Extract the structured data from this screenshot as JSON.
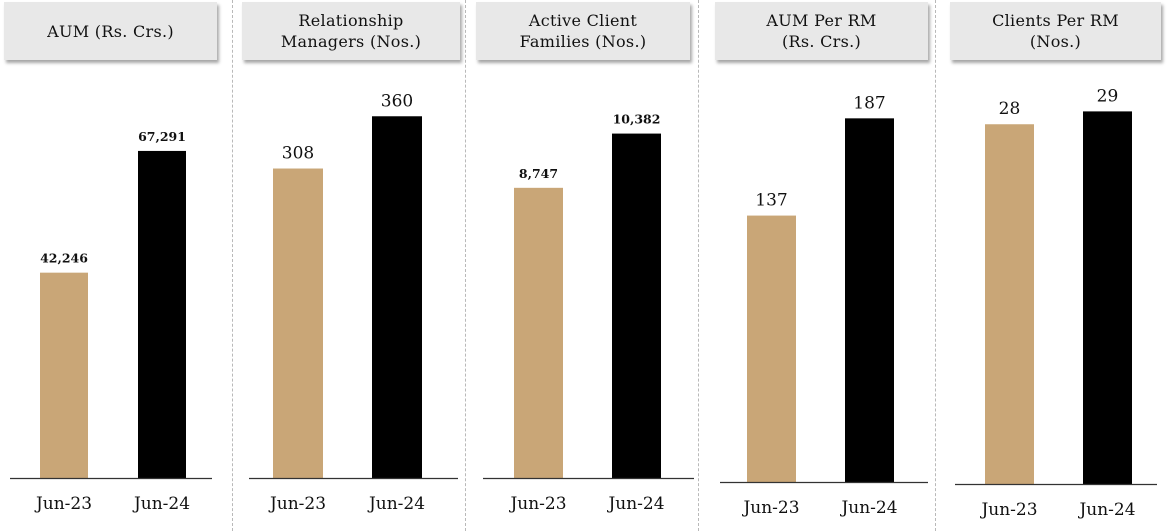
{
  "colors": {
    "jun23": "#c9a677",
    "jun24": "#000000",
    "axis": "#333333"
  },
  "chart_data": [
    {
      "type": "bar",
      "title": "AUM (Rs. Crs.)",
      "categories": [
        "Jun-23",
        "Jun-24"
      ],
      "values": [
        42246,
        67291
      ],
      "value_labels": [
        "42,246",
        "67,291"
      ],
      "label_style": "bold",
      "ylim": [
        0,
        86000
      ]
    },
    {
      "type": "bar",
      "title": "Relationship\nManagers (Nos.)",
      "categories": [
        "Jun-23",
        "Jun-24"
      ],
      "values": [
        308,
        360
      ],
      "value_labels": [
        "308",
        "360"
      ],
      "label_style": "normal",
      "ylim": [
        0,
        416
      ]
    },
    {
      "type": "bar",
      "title": "Active Client\nFamilies (Nos.)",
      "categories": [
        "Jun-23",
        "Jun-24"
      ],
      "values": [
        8747,
        10382
      ],
      "value_labels": [
        "8,747",
        "10,382"
      ],
      "label_style": "bold",
      "ylim": [
        0,
        12600
      ]
    },
    {
      "type": "bar",
      "title": "AUM Per RM\n(Rs. Crs.)",
      "categories": [
        "Jun-23",
        "Jun-24"
      ],
      "values": [
        137,
        187
      ],
      "value_labels": [
        "137",
        "187"
      ],
      "label_style": "normal",
      "ylim": [
        0,
        217
      ]
    },
    {
      "type": "bar",
      "title": "Clients Per RM\n(Nos.)",
      "categories": [
        "Jun-23",
        "Jun-24"
      ],
      "values": [
        28,
        29
      ],
      "value_labels": [
        "28",
        "29"
      ],
      "label_style": "normal",
      "ylim": [
        0,
        33
      ]
    }
  ]
}
